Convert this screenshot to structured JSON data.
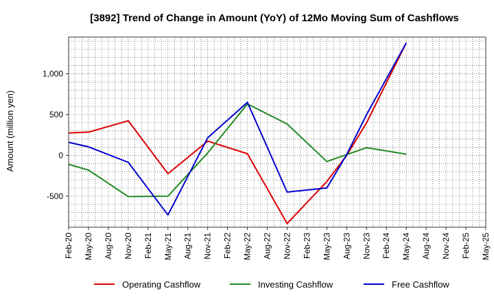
{
  "chart_data": {
    "type": "line",
    "title": "[3892]  Trend of Change in Amount (YoY) of 12Mo Moving Sum of Cashflows",
    "xlabel": "",
    "ylabel": "Amount (million yen)",
    "ylim": [
      -880,
      1450
    ],
    "yticks": [
      -500,
      0,
      500,
      1000
    ],
    "ytick_labels": [
      "-500",
      "0",
      "500",
      "1,000"
    ],
    "categories": [
      "Feb-20",
      "May-20",
      "Aug-20",
      "Nov-20",
      "Feb-21",
      "May-21",
      "Aug-21",
      "Nov-21",
      "Feb-22",
      "May-22",
      "Aug-22",
      "Nov-22",
      "Feb-23",
      "May-23",
      "Aug-23",
      "Nov-23",
      "Feb-24",
      "May-24",
      "Aug-24",
      "Nov-24",
      "Feb-25",
      "May-25"
    ],
    "minor_grid_per_category": 3,
    "series": [
      {
        "name": "Operating Cashflow",
        "color": "#dd0000",
        "values": [
          275,
          285,
          null,
          425,
          null,
          -225,
          null,
          175,
          null,
          20,
          null,
          -835,
          null,
          -320,
          0,
          400,
          null,
          1380,
          null,
          null,
          null,
          null
        ]
      },
      {
        "name": "Investing Cashflow",
        "color": "#228822",
        "values": [
          -110,
          -180,
          null,
          -505,
          null,
          -500,
          null,
          30,
          null,
          630,
          null,
          385,
          null,
          -75,
          10,
          95,
          null,
          15,
          null,
          null,
          null,
          null
        ]
      },
      {
        "name": "Free Cashflow",
        "color": "#0000cc",
        "values": [
          160,
          105,
          null,
          -85,
          null,
          -730,
          null,
          215,
          null,
          650,
          null,
          -450,
          null,
          -400,
          10,
          500,
          null,
          1380,
          null,
          null,
          null,
          null
        ]
      }
    ],
    "legend_position": "bottom",
    "grid": true
  }
}
